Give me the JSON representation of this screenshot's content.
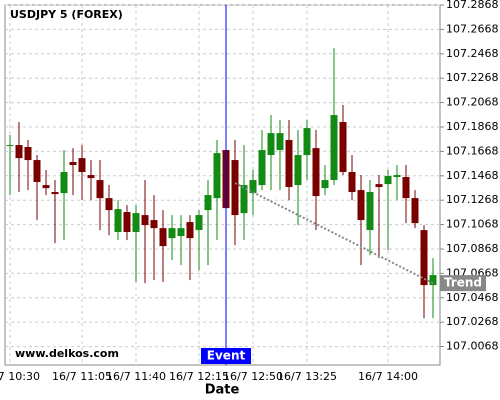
{
  "chart_data": {
    "type": "candlestick",
    "title": "USDJPY 5 (FOREX)",
    "x_label": "Date",
    "watermark": "www.delkos.com",
    "categories": [
      "16/7 10:30",
      null,
      null,
      null,
      null,
      null,
      null,
      null,
      "16/7 11:05",
      null,
      null,
      null,
      null,
      null,
      "16/7 11:40",
      null,
      null,
      null,
      null,
      null,
      null,
      "16/7 12:15",
      null,
      null,
      null,
      null,
      null,
      "16/7 12:50",
      null,
      null,
      null,
      null,
      null,
      "16/7 13:25",
      null,
      null,
      null,
      null,
      null,
      null,
      null,
      null,
      "16/7 14:00",
      null,
      null,
      null,
      null,
      null
    ],
    "open": [
      107.1712,
      107.172,
      107.1704,
      107.1597,
      107.1392,
      107.1335,
      107.1326,
      107.1581,
      107.1613,
      107.1474,
      107.1433,
      107.1285,
      107.1007,
      107.1171,
      107.1007,
      107.1146,
      107.1105,
      107.1039,
      107.0957,
      107.0974,
      107.1089,
      107.1023,
      107.1187,
      107.1285,
      107.1679,
      107.1597,
      107.1162,
      107.1326,
      107.1392,
      107.1638,
      107.1679,
      107.1761,
      107.1392,
      107.1638,
      107.1695,
      107.1367,
      107.1433,
      107.1909,
      107.1499,
      107.1351,
      107.1023,
      107.14,
      107.14,
      107.1458,
      107.1458,
      107.1285,
      107.1023,
      107.0572
    ],
    "high": [
      107.1802,
      107.1909,
      107.1761,
      107.1638,
      107.1515,
      107.1433,
      107.1679,
      107.1695,
      107.172,
      107.1597,
      107.1597,
      107.1392,
      107.1269,
      107.1228,
      107.1228,
      107.1433,
      107.131,
      107.1187,
      107.1146,
      107.1146,
      107.1146,
      107.1187,
      107.1433,
      107.1761,
      107.1761,
      107.1761,
      107.172,
      107.1515,
      107.1843,
      107.1966,
      107.1925,
      107.1925,
      107.1843,
      107.1925,
      107.1843,
      107.1556,
      107.2515,
      107.2048,
      107.1638,
      107.1474,
      107.1433,
      107.1474,
      107.1515,
      107.1556,
      107.1556,
      107.1351,
      107.1064,
      107.0793
    ],
    "low": [
      107.131,
      107.1335,
      107.1351,
      107.1105,
      107.131,
      107.0916,
      107.0941,
      107.131,
      107.1269,
      107.1269,
      107.1023,
      107.0982,
      107.0941,
      107.0941,
      107.0597,
      107.0588,
      107.0613,
      107.0597,
      107.0777,
      107.0736,
      107.0613,
      107.0695,
      107.0736,
      107.0941,
      107.1146,
      107.09,
      107.0941,
      107.1146,
      107.1351,
      107.1351,
      107.1351,
      107.1269,
      107.1064,
      107.1433,
      107.1023,
      107.131,
      107.1392,
      107.1474,
      107.1269,
      107.0736,
      107.0818,
      107.0793,
      107.0859,
      107.1269,
      107.108,
      107.1039,
      107.0301,
      107.0301
    ],
    "close": [
      107.172,
      107.1613,
      107.1597,
      107.1417,
      107.1367,
      107.1318,
      107.1499,
      107.1556,
      107.1499,
      107.1449,
      107.1285,
      107.1187,
      107.1195,
      107.1007,
      107.1162,
      107.1064,
      107.1039,
      107.0892,
      107.1039,
      107.1039,
      107.0957,
      107.1146,
      107.131,
      107.1654,
      107.1203,
      107.1146,
      107.1392,
      107.1433,
      107.1679,
      107.1818,
      107.1818,
      107.1376,
      107.1638,
      107.1859,
      107.1302,
      107.1433,
      107.1966,
      107.1499,
      107.1335,
      107.1105,
      107.1335,
      107.1376,
      107.1466,
      107.1474,
      107.1285,
      107.108,
      107.0572,
      107.0654
    ],
    "up_color": "#138a13",
    "down_color": "#7a0000",
    "trend": {
      "name": "Trend",
      "color": "#888888",
      "values": [
        null,
        null,
        null,
        null,
        null,
        null,
        null,
        null,
        null,
        null,
        null,
        null,
        null,
        null,
        null,
        null,
        null,
        null,
        null,
        null,
        null,
        null,
        null,
        null,
        null,
        107.1408,
        null,
        null,
        null,
        null,
        null,
        null,
        null,
        null,
        null,
        null,
        null,
        null,
        null,
        null,
        null,
        null,
        null,
        null,
        null,
        null,
        null,
        107.0588
      ]
    },
    "event": {
      "label": "Event",
      "index": 24,
      "color": "#0000ff"
    },
    "ylim": [
      106.9917,
      107.2868
    ],
    "yticks": [
      107.0068,
      107.0268,
      107.0468,
      107.0668,
      107.0868,
      107.1068,
      107.1268,
      107.1468,
      107.1668,
      107.1868,
      107.2068,
      107.2268,
      107.2468,
      107.2668,
      107.2868
    ],
    "grid": true
  }
}
